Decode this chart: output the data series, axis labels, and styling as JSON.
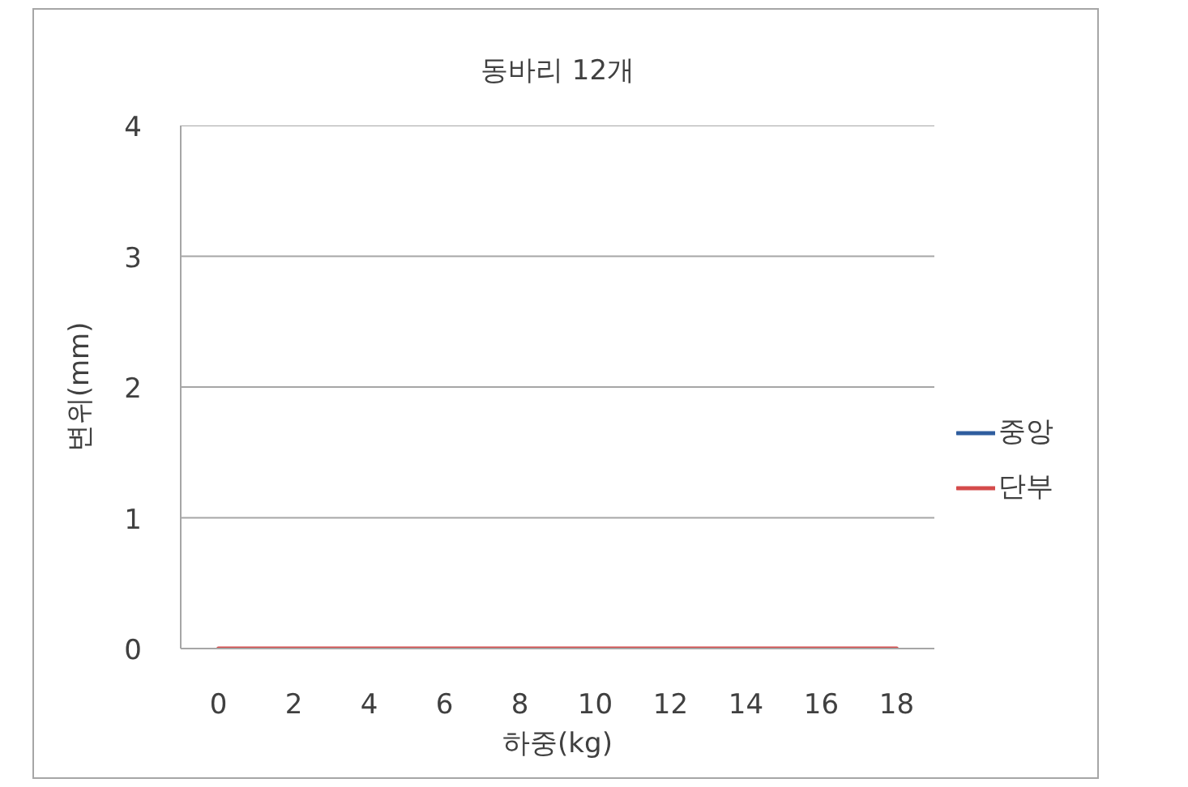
{
  "chart_data": {
    "type": "line",
    "title": "동바리 12개",
    "xlabel": "하중(kg)",
    "ylabel": "변위(mm)",
    "categories": [
      "0",
      "2",
      "4",
      "6",
      "8",
      "10",
      "12",
      "14",
      "16",
      "18"
    ],
    "series": [
      {
        "name": "중앙",
        "color": "#2f5d9e",
        "values": [
          null,
          null,
          null,
          null,
          null,
          null,
          null,
          null,
          null,
          null
        ]
      },
      {
        "name": "단부",
        "color": "#d44b4b",
        "values": [
          0,
          0,
          0,
          0,
          0,
          0,
          0,
          0,
          0,
          0
        ]
      }
    ],
    "ylim": [
      0,
      4
    ],
    "yticks": [
      0,
      1,
      2,
      3,
      4
    ],
    "grid": "y",
    "legend": "right"
  }
}
